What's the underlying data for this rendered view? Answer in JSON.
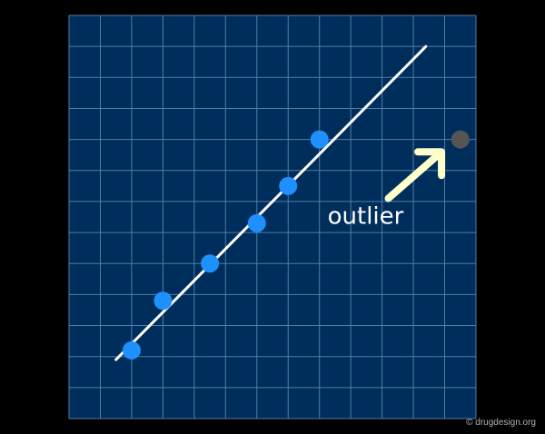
{
  "chart_data": {
    "type": "scatter",
    "title": "",
    "xlabel": "",
    "ylabel": "",
    "xlim": [
      0,
      13
    ],
    "ylim": [
      0,
      13
    ],
    "grid": true,
    "legend": "none",
    "series": [
      {
        "points": [
          {
            "x": 2.0,
            "y": 2.2
          },
          {
            "x": 3.0,
            "y": 3.8
          },
          {
            "x": 4.5,
            "y": 5.0
          },
          {
            "x": 6.0,
            "y": 6.3
          },
          {
            "x": 7.0,
            "y": 7.5
          },
          {
            "x": 8.0,
            "y": 9.0
          }
        ],
        "color": "#1e90ff"
      },
      {
        "points": [
          {
            "x": 12.5,
            "y": 9.0
          }
        ],
        "color": "#555555"
      }
    ],
    "fit_line": {
      "x1": 1.5,
      "y1": 1.9,
      "x2": 11.4,
      "y2": 12.0,
      "color": "#ffffff"
    },
    "annotations": [
      {
        "text": "outlier",
        "x": 10.0,
        "y": 6.4,
        "color": "#ffffff"
      }
    ],
    "arrow": {
      "from_x": 10.2,
      "from_y": 7.1,
      "to_x": 11.9,
      "to_y": 8.6,
      "color": "#ffffcc"
    }
  },
  "colors": {
    "page_background": "#000000",
    "plot_background": "#002e5c",
    "grid_line": "#4f7fa5"
  },
  "credit": "© drugdesign.org"
}
